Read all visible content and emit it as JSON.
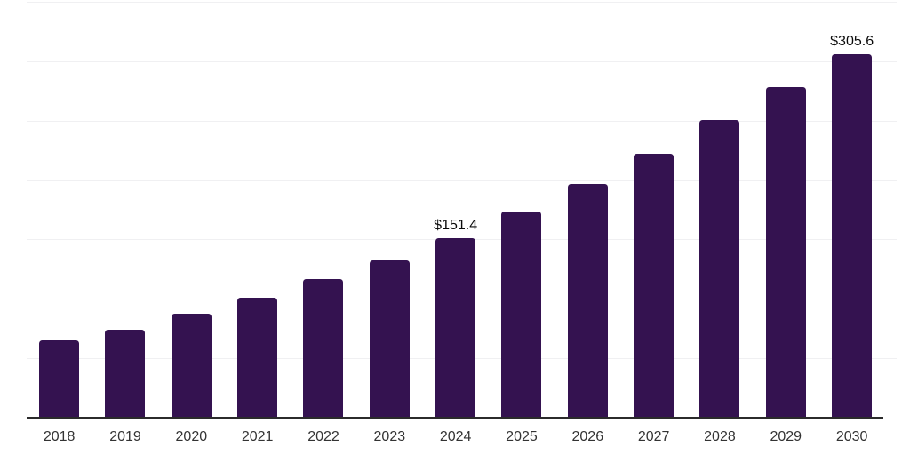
{
  "chart_data": {
    "type": "bar",
    "title": "",
    "xlabel": "",
    "ylabel": "",
    "categories": [
      "2018",
      "2019",
      "2020",
      "2021",
      "2022",
      "2023",
      "2024",
      "2025",
      "2026",
      "2027",
      "2028",
      "2029",
      "2030"
    ],
    "values": [
      64.7,
      74.2,
      87.2,
      101.1,
      116.6,
      132.5,
      151.4,
      173.2,
      196.6,
      222.2,
      250.4,
      277.9,
      305.6
    ],
    "data_labels": [
      {
        "index": 6,
        "text": "$151.4"
      },
      {
        "index": 12,
        "text": "$305.6"
      }
    ],
    "ylim": [
      0,
      350
    ],
    "gridline_step": 50,
    "grid": true,
    "legend": false,
    "y_axis_ticks_visible": false,
    "colors": {
      "bar_fill": "#341250",
      "axis_line": "#2b2b2b",
      "gridline": "#f0f0f2",
      "x_label": "#333333",
      "value_label": "#0a0a0a",
      "background": "#ffffff"
    }
  }
}
